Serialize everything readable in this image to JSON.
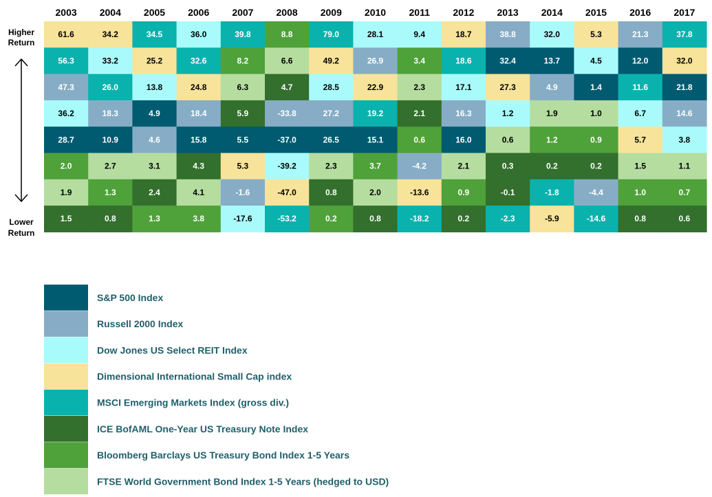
{
  "chart_data": {
    "type": "table",
    "title": "",
    "years": [
      "2003",
      "2004",
      "2005",
      "2006",
      "2007",
      "2008",
      "2009",
      "2010",
      "2011",
      "2012",
      "2013",
      "2014",
      "2015",
      "2016",
      "2017"
    ],
    "side_labels": {
      "top": [
        "Higher",
        "Return"
      ],
      "bottom": [
        "Lower",
        "Return"
      ]
    },
    "indices": [
      {
        "key": "sp500",
        "name": "S&P 500 Index",
        "color": "#005a70",
        "text_color": "#ffffff"
      },
      {
        "key": "r2000",
        "name": "Russell 2000 Index",
        "color": "#86adc5",
        "text_color": "#ffffff"
      },
      {
        "key": "reit",
        "name": "Dow Jones US Select REIT Index",
        "color": "#a9fbfb",
        "text_color": "#000000"
      },
      {
        "key": "intlsc",
        "name": "Dimensional International Small Cap index",
        "color": "#f7e399",
        "text_color": "#000000"
      },
      {
        "key": "em",
        "name": "MSCI Emerging Markets Index (gross div.)",
        "color": "#0ab2ad",
        "text_color": "#ffffff"
      },
      {
        "key": "ice",
        "name": "ICE BofAML One-Year US Treasury Note Index",
        "color": "#336f2d",
        "text_color": "#ffffff"
      },
      {
        "key": "bbtreas",
        "name": "Bloomberg Barclays US Treasury Bond Index 1-5 Years",
        "color": "#4fa13a",
        "text_color": "#ffffff"
      },
      {
        "key": "ftse",
        "name": "FTSE World Government Bond Index 1-5 Years (hedged to USD)",
        "color": "#b5dd9f",
        "text_color": "#000000"
      }
    ],
    "columns": [
      [
        {
          "v": "61.6",
          "k": "intlsc"
        },
        {
          "v": "56.3",
          "k": "em"
        },
        {
          "v": "47.3",
          "k": "r2000"
        },
        {
          "v": "36.2",
          "k": "reit"
        },
        {
          "v": "28.7",
          "k": "sp500"
        },
        {
          "v": "2.0",
          "k": "bbtreas"
        },
        {
          "v": "1.9",
          "k": "ftse"
        },
        {
          "v": "1.5",
          "k": "ice"
        }
      ],
      [
        {
          "v": "34.2",
          "k": "intlsc"
        },
        {
          "v": "33.2",
          "k": "reit"
        },
        {
          "v": "26.0",
          "k": "em"
        },
        {
          "v": "18.3",
          "k": "r2000"
        },
        {
          "v": "10.9",
          "k": "sp500"
        },
        {
          "v": "2.7",
          "k": "ftse"
        },
        {
          "v": "1.3",
          "k": "bbtreas"
        },
        {
          "v": "0.8",
          "k": "ice"
        }
      ],
      [
        {
          "v": "34.5",
          "k": "em"
        },
        {
          "v": "25.2",
          "k": "intlsc"
        },
        {
          "v": "13.8",
          "k": "reit"
        },
        {
          "v": "4.9",
          "k": "sp500"
        },
        {
          "v": "4.6",
          "k": "r2000"
        },
        {
          "v": "3.1",
          "k": "ftse"
        },
        {
          "v": "2.4",
          "k": "ice"
        },
        {
          "v": "1.3",
          "k": "bbtreas"
        }
      ],
      [
        {
          "v": "36.0",
          "k": "reit"
        },
        {
          "v": "32.6",
          "k": "em"
        },
        {
          "v": "24.8",
          "k": "intlsc"
        },
        {
          "v": "18.4",
          "k": "r2000"
        },
        {
          "v": "15.8",
          "k": "sp500"
        },
        {
          "v": "4.3",
          "k": "ice"
        },
        {
          "v": "4.1",
          "k": "ftse"
        },
        {
          "v": "3.8",
          "k": "bbtreas"
        }
      ],
      [
        {
          "v": "39.8",
          "k": "em"
        },
        {
          "v": "8.2",
          "k": "bbtreas"
        },
        {
          "v": "6.3",
          "k": "ftse"
        },
        {
          "v": "5.9",
          "k": "ice"
        },
        {
          "v": "5.5",
          "k": "sp500"
        },
        {
          "v": "5.3",
          "k": "intlsc"
        },
        {
          "v": "-1.6",
          "k": "r2000"
        },
        {
          "v": "-17.6",
          "k": "reit"
        }
      ],
      [
        {
          "v": "8.8",
          "k": "bbtreas"
        },
        {
          "v": "6.6",
          "k": "ftse"
        },
        {
          "v": "4.7",
          "k": "ice"
        },
        {
          "v": "-33.8",
          "k": "r2000"
        },
        {
          "v": "-37.0",
          "k": "sp500"
        },
        {
          "v": "-39.2",
          "k": "reit"
        },
        {
          "v": "-47.0",
          "k": "intlsc"
        },
        {
          "v": "-53.2",
          "k": "em"
        }
      ],
      [
        {
          "v": "79.0",
          "k": "em"
        },
        {
          "v": "49.2",
          "k": "intlsc"
        },
        {
          "v": "28.5",
          "k": "reit"
        },
        {
          "v": "27.2",
          "k": "r2000"
        },
        {
          "v": "26.5",
          "k": "sp500"
        },
        {
          "v": "2.3",
          "k": "ftse"
        },
        {
          "v": "0.8",
          "k": "ice"
        },
        {
          "v": "0.2",
          "k": "bbtreas"
        }
      ],
      [
        {
          "v": "28.1",
          "k": "reit"
        },
        {
          "v": "26.9",
          "k": "r2000"
        },
        {
          "v": "22.9",
          "k": "intlsc"
        },
        {
          "v": "19.2",
          "k": "em"
        },
        {
          "v": "15.1",
          "k": "sp500"
        },
        {
          "v": "3.7",
          "k": "bbtreas"
        },
        {
          "v": "2.0",
          "k": "ftse"
        },
        {
          "v": "0.8",
          "k": "ice"
        }
      ],
      [
        {
          "v": "9.4",
          "k": "reit"
        },
        {
          "v": "3.4",
          "k": "bbtreas"
        },
        {
          "v": "2.3",
          "k": "ftse"
        },
        {
          "v": "2.1",
          "k": "ice"
        },
        {
          "v": "0.6",
          "k": "bbtreas"
        },
        {
          "v": "-4.2",
          "k": "r2000"
        },
        {
          "v": "-13.6",
          "k": "intlsc"
        },
        {
          "v": "-18.2",
          "k": "em"
        }
      ],
      [
        {
          "v": "18.7",
          "k": "intlsc"
        },
        {
          "v": "18.6",
          "k": "em"
        },
        {
          "v": "17.1",
          "k": "reit"
        },
        {
          "v": "16.3",
          "k": "r2000"
        },
        {
          "v": "16.0",
          "k": "sp500"
        },
        {
          "v": "2.1",
          "k": "ftse"
        },
        {
          "v": "0.9",
          "k": "bbtreas"
        },
        {
          "v": "0.2",
          "k": "ice"
        }
      ],
      [
        {
          "v": "38.8",
          "k": "r2000"
        },
        {
          "v": "32.4",
          "k": "sp500"
        },
        {
          "v": "27.3",
          "k": "intlsc"
        },
        {
          "v": "1.2",
          "k": "reit"
        },
        {
          "v": "0.6",
          "k": "ftse"
        },
        {
          "v": "0.3",
          "k": "ice"
        },
        {
          "v": "-0.1",
          "k": "ice"
        },
        {
          "v": "-2.3",
          "k": "em"
        }
      ],
      [
        {
          "v": "32.0",
          "k": "reit"
        },
        {
          "v": "13.7",
          "k": "sp500"
        },
        {
          "v": "4.9",
          "k": "r2000"
        },
        {
          "v": "1.9",
          "k": "ftse"
        },
        {
          "v": "1.2",
          "k": "bbtreas"
        },
        {
          "v": "0.2",
          "k": "ice"
        },
        {
          "v": "-1.8",
          "k": "em"
        },
        {
          "v": "-5.9",
          "k": "intlsc"
        }
      ],
      [
        {
          "v": "5.3",
          "k": "intlsc"
        },
        {
          "v": "4.5",
          "k": "reit"
        },
        {
          "v": "1.4",
          "k": "sp500"
        },
        {
          "v": "1.0",
          "k": "ftse"
        },
        {
          "v": "0.9",
          "k": "bbtreas"
        },
        {
          "v": "0.2",
          "k": "ice"
        },
        {
          "v": "-4.4",
          "k": "r2000"
        },
        {
          "v": "-14.6",
          "k": "em"
        }
      ],
      [
        {
          "v": "21.3",
          "k": "r2000"
        },
        {
          "v": "12.0",
          "k": "sp500"
        },
        {
          "v": "11.6",
          "k": "em"
        },
        {
          "v": "6.7",
          "k": "reit"
        },
        {
          "v": "5.7",
          "k": "intlsc"
        },
        {
          "v": "1.5",
          "k": "ftse"
        },
        {
          "v": "1.0",
          "k": "bbtreas"
        },
        {
          "v": "0.8",
          "k": "ice"
        }
      ],
      [
        {
          "v": "37.8",
          "k": "em"
        },
        {
          "v": "32.0",
          "k": "intlsc"
        },
        {
          "v": "21.8",
          "k": "sp500"
        },
        {
          "v": "14.6",
          "k": "r2000"
        },
        {
          "v": "3.8",
          "k": "reit"
        },
        {
          "v": "1.1",
          "k": "ftse"
        },
        {
          "v": "0.7",
          "k": "bbtreas"
        },
        {
          "v": "0.6",
          "k": "ice"
        }
      ]
    ]
  }
}
